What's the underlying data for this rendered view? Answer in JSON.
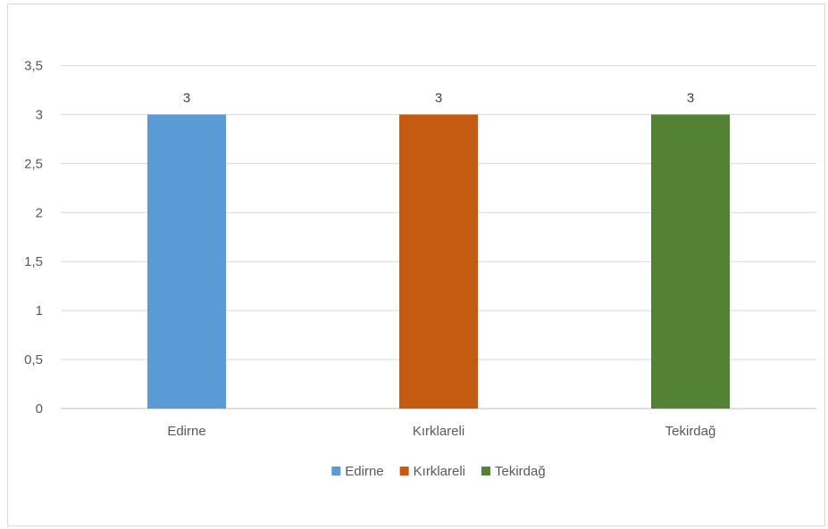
{
  "chart_data": {
    "type": "bar",
    "title": "",
    "xlabel": "",
    "ylabel": "",
    "categories": [
      "Edirne",
      "Kırklareli",
      "Tekirdağ"
    ],
    "values": [
      3,
      3,
      3
    ],
    "colors": [
      "#5b9bd5",
      "#c55a11",
      "#548235"
    ],
    "data_labels": [
      "3",
      "3",
      "3"
    ],
    "ylim": [
      0,
      3.5
    ],
    "y_ticks": [
      {
        "value": 0,
        "label": "0"
      },
      {
        "value": 0.5,
        "label": "0,5"
      },
      {
        "value": 1,
        "label": "1"
      },
      {
        "value": 1.5,
        "label": "1,5"
      },
      {
        "value": 2,
        "label": "2"
      },
      {
        "value": 2.5,
        "label": "2,5"
      },
      {
        "value": 3,
        "label": "3"
      },
      {
        "value": 3.5,
        "label": "3,5"
      }
    ],
    "grid": true,
    "legend": {
      "position": "bottom",
      "entries": [
        {
          "name": "Edirne",
          "color": "#5b9bd5"
        },
        {
          "name": "Kırklareli",
          "color": "#c55a11"
        },
        {
          "name": "Tekirdağ",
          "color": "#548235"
        }
      ]
    }
  }
}
